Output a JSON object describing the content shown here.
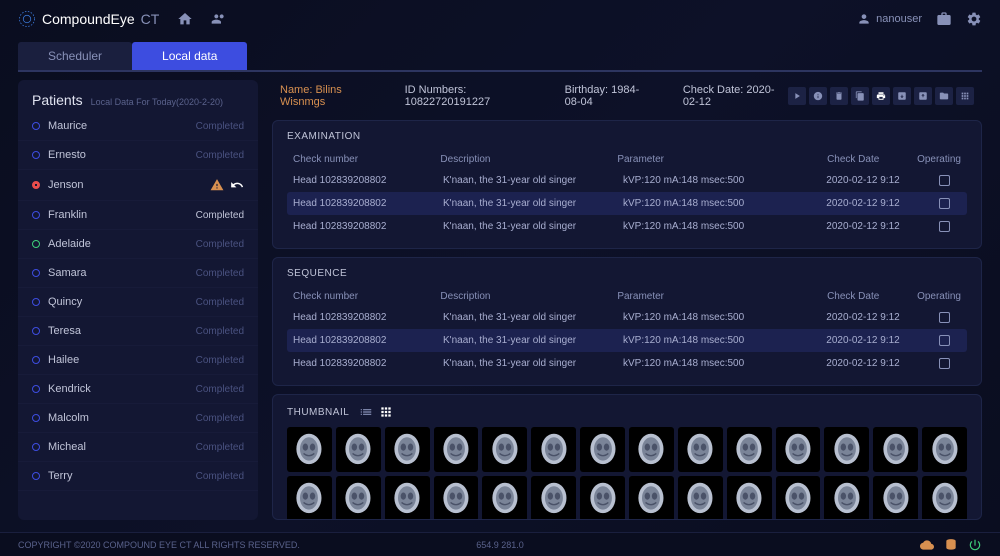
{
  "brand": {
    "name": "CompoundEye",
    "suffix": "CT"
  },
  "user": {
    "name": "nanouser"
  },
  "tabs": {
    "scheduler": "Scheduler",
    "local_data": "Local data"
  },
  "sidebar": {
    "title": "Patients",
    "subtitle": "Local Data For Today(2020-2-20)",
    "items": [
      {
        "name": "Maurice",
        "status": "Completed",
        "dot": "blue",
        "dim": true
      },
      {
        "name": "Ernesto",
        "status": "Completed",
        "dot": "blue",
        "dim": true
      },
      {
        "name": "Jenson",
        "status": "",
        "dot": "red-dot",
        "icons": true
      },
      {
        "name": "Franklin",
        "status": "Completed",
        "dot": "blue",
        "dim": false
      },
      {
        "name": "Adelaide",
        "status": "Completed",
        "dot": "green",
        "dim": true
      },
      {
        "name": "Samara",
        "status": "Completed",
        "dot": "blue",
        "dim": true
      },
      {
        "name": "Quincy",
        "status": "Completed",
        "dot": "blue",
        "dim": true
      },
      {
        "name": "Teresa",
        "status": "Completed",
        "dot": "blue",
        "dim": true
      },
      {
        "name": "Hailee",
        "status": "Completed",
        "dot": "blue",
        "dim": true
      },
      {
        "name": "Kendrick",
        "status": "Completed",
        "dot": "blue",
        "dim": true
      },
      {
        "name": "Malcolm",
        "status": "Completed",
        "dot": "blue",
        "dim": true
      },
      {
        "name": "Micheal",
        "status": "Completed",
        "dot": "blue",
        "dim": true
      },
      {
        "name": "Terry",
        "status": "Completed",
        "dot": "blue",
        "dim": true
      }
    ]
  },
  "patient_info": {
    "name_label": "Name:",
    "name": "Bilins Wisnmgs",
    "id_label": "ID Numbers:",
    "id": "10822720191227",
    "birthday_label": "Birthday:",
    "birthday": "1984-08-04",
    "check_date_label": "Check Date:",
    "check_date": "2020-02-12"
  },
  "examination": {
    "title": "EXAMINATION",
    "headers": {
      "check": "Check number",
      "desc": "Description",
      "param": "Parameter",
      "date": "Check Date",
      "op": "Operating"
    },
    "rows": [
      {
        "check": "Head 102839208802",
        "desc": "K'naan, the 31-year old singer",
        "param": "kVP:120  mA:148  msec:500",
        "date": "2020-02-12 9:12",
        "highlight": false
      },
      {
        "check": "Head 102839208802",
        "desc": "K'naan, the 31-year old singer",
        "param": "kVP:120  mA:148  msec:500",
        "date": "2020-02-12 9:12",
        "highlight": true
      },
      {
        "check": "Head 102839208802",
        "desc": "K'naan, the 31-year old singer",
        "param": "kVP:120  mA:148  msec:500",
        "date": "2020-02-12 9:12",
        "highlight": false
      }
    ]
  },
  "sequence": {
    "title": "SEQUENCE",
    "rows": [
      {
        "check": "Head 102839208802",
        "desc": "K'naan, the 31-year old singer",
        "param": "kVP:120  mA:148  msec:500",
        "date": "2020-02-12 9:12",
        "highlight": false
      },
      {
        "check": "Head 102839208802",
        "desc": "K'naan, the 31-year old singer",
        "param": "kVP:120  mA:148  msec:500",
        "date": "2020-02-12 9:12",
        "highlight": true
      },
      {
        "check": "Head 102839208802",
        "desc": "K'naan, the 31-year old singer",
        "param": "kVP:120  mA:148  msec:500",
        "date": "2020-02-12 9:12",
        "highlight": false
      }
    ]
  },
  "thumbnail": {
    "title": "THUMBNAIL",
    "count": 28
  },
  "footer": {
    "copyright": "COPYRIGHT ©2020 COMPOUND EYE CT ALL RIGHTS RESERVED.",
    "coords": "654.9   281.0"
  },
  "colors": {
    "accent_blue": "#3d4de0",
    "accent_orange": "#d89050",
    "bg_panel": "#131733",
    "text_muted": "#8891b8"
  }
}
